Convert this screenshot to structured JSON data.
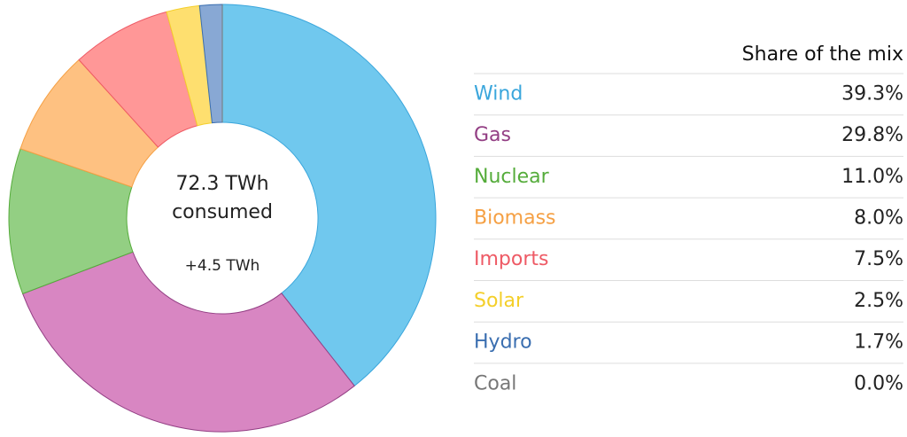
{
  "chart_data": {
    "type": "pie",
    "center_title": "72.3 TWh",
    "center_subtitle": "consumed",
    "center_note": "+4.5 TWh",
    "table_header": "Share of the mix",
    "categories": [
      "Wind",
      "Gas",
      "Nuclear",
      "Biomass",
      "Imports",
      "Solar",
      "Hydro",
      "Coal"
    ],
    "values": [
      39.3,
      29.8,
      11.0,
      8.0,
      7.5,
      2.5,
      1.7,
      0.0
    ],
    "value_labels": [
      "39.3%",
      "29.8%",
      "11.0%",
      "8.0%",
      "7.5%",
      "2.5%",
      "1.7%",
      "0.0%"
    ],
    "colors": [
      "#70c8ee",
      "#d886c2",
      "#93cf83",
      "#fec181",
      "#ff9797",
      "#fedf6f",
      "#88a8d4",
      "#999999"
    ],
    "label_colors": [
      "#3aa6dc",
      "#933f84",
      "#55ac3b",
      "#f5a044",
      "#ee5a65",
      "#f4cf2a",
      "#3a6eb0",
      "#777777"
    ]
  }
}
